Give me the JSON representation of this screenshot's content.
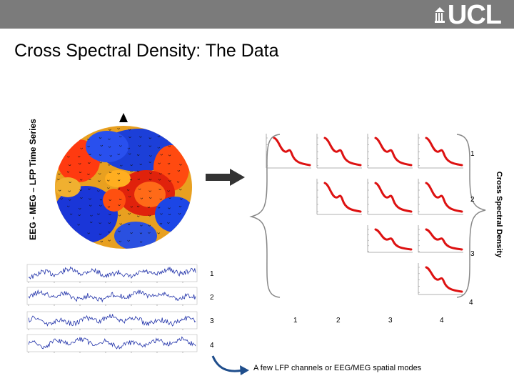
{
  "header": {
    "logo_text": "UCL"
  },
  "slide": {
    "title": "Cross Spectral Density: The Data",
    "left_axis_label": "EEG - MEG – LFP Time Series",
    "right_axis_label": "Cross Spectral Density",
    "caption": "A few LFP channels or EEG/MEG spatial modes"
  },
  "matrix": {
    "row_labels": [
      "1",
      "2",
      "3",
      "4"
    ],
    "column_labels": [
      "1",
      "2",
      "3",
      "4"
    ]
  },
  "timeseries": {
    "labels": [
      "1",
      "2",
      "3",
      "4"
    ]
  },
  "colors": {
    "header_bg": "#7b7b7b",
    "csd_line": "#dd1111",
    "ts_line": "#2233aa",
    "arrow": "#1f4e8c"
  }
}
